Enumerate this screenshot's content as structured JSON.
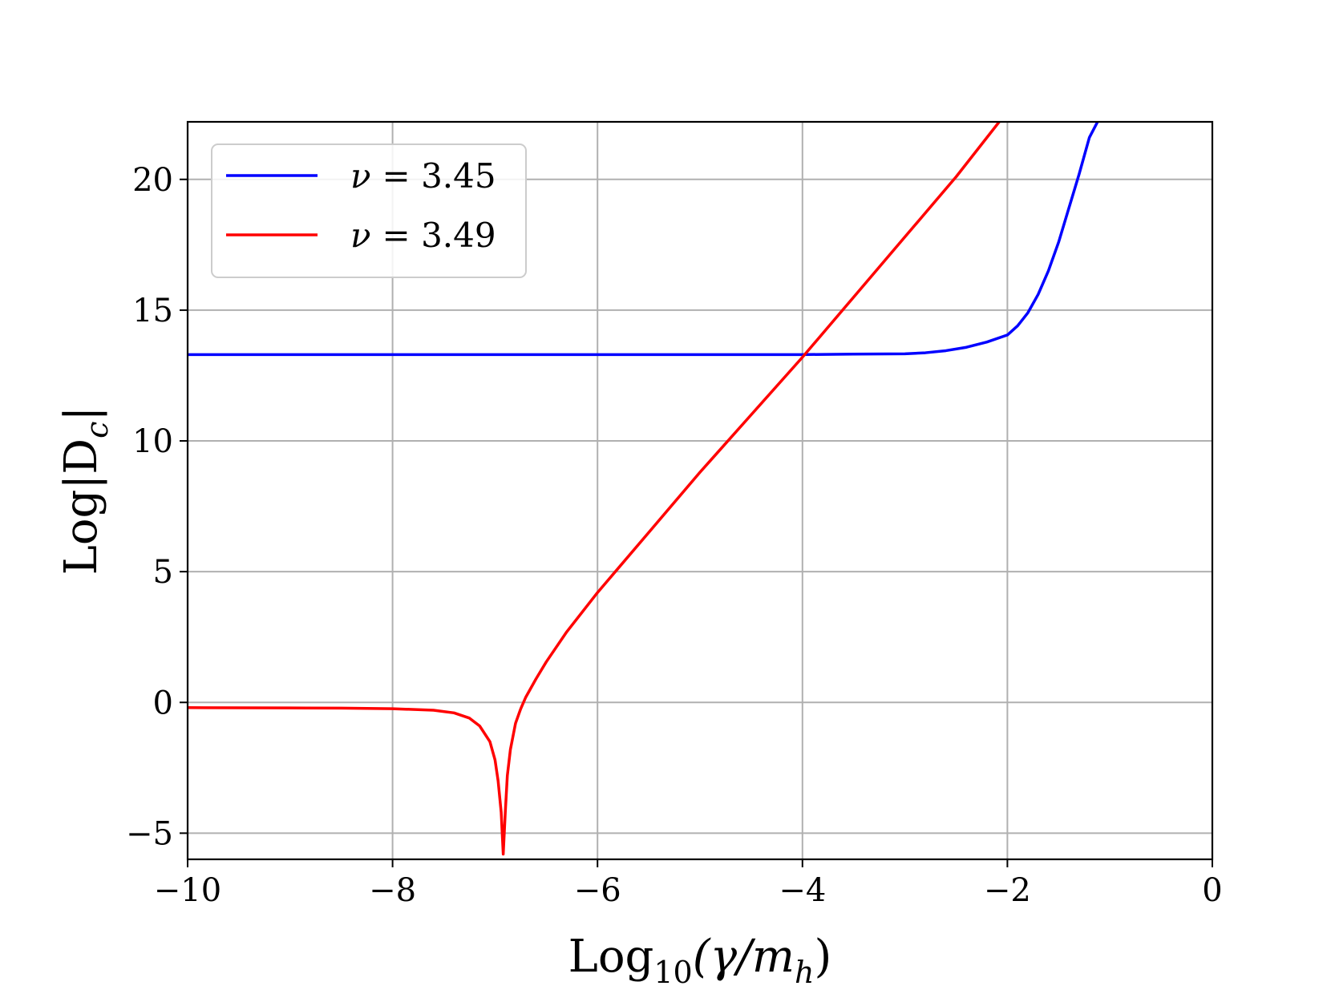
{
  "chart_data": {
    "type": "line",
    "xlabel": {
      "pre": "Log",
      "sub": "10",
      "post": "(γ/m",
      "var_sub": "h",
      "close": ")"
    },
    "ylabel": {
      "pre": "Log|D",
      "sub": "c",
      "close": "|"
    },
    "xlim": [
      -10,
      0
    ],
    "ylim": [
      -6,
      22.2
    ],
    "xticks": [
      -10,
      -8,
      -6,
      -4,
      -2,
      0
    ],
    "xtick_labels": [
      "−10",
      "−8",
      "−6",
      "−4",
      "−2",
      "0"
    ],
    "yticks": [
      -5,
      0,
      5,
      10,
      15,
      20
    ],
    "ytick_labels": [
      "−5",
      "0",
      "5",
      "10",
      "15",
      "20"
    ],
    "grid": true,
    "legend_position": "top-left",
    "series": [
      {
        "name": "ν = 3.45",
        "name_var": "ν",
        "name_value": "= 3.45",
        "color": "#0000ff",
        "x": [
          -10,
          -8,
          -6,
          -4,
          -3.5,
          -3.0,
          -2.8,
          -2.6,
          -2.4,
          -2.2,
          -2.0,
          -1.9,
          -1.8,
          -1.7,
          -1.6,
          -1.5,
          -1.4,
          -1.3,
          -1.2,
          -1.12
        ],
        "y": [
          13.3,
          13.3,
          13.3,
          13.3,
          13.32,
          13.33,
          13.37,
          13.45,
          13.58,
          13.78,
          14.05,
          14.4,
          14.9,
          15.6,
          16.5,
          17.6,
          18.9,
          20.2,
          21.6,
          22.2
        ]
      },
      {
        "name": "ν = 3.49",
        "name_var": "ν",
        "name_value": "= 3.49",
        "color": "#ff0000",
        "x": [
          -10,
          -9,
          -8.5,
          -8.0,
          -7.6,
          -7.4,
          -7.25,
          -7.15,
          -7.05,
          -7.0,
          -6.97,
          -6.94,
          -6.92,
          -6.9,
          -6.88,
          -6.85,
          -6.8,
          -6.75,
          -6.7,
          -6.6,
          -6.5,
          -6.3,
          -6.0,
          -5.5,
          -5.0,
          -4.5,
          -4.0,
          -3.5,
          -3.0,
          -2.5,
          -2.08
        ],
        "y": [
          -0.2,
          -0.21,
          -0.22,
          -0.24,
          -0.3,
          -0.4,
          -0.6,
          -0.9,
          -1.5,
          -2.2,
          -3.0,
          -4.2,
          -5.8,
          -4.2,
          -2.8,
          -1.8,
          -0.8,
          -0.25,
          0.2,
          0.9,
          1.55,
          2.7,
          4.2,
          6.5,
          8.8,
          11.0,
          13.2,
          15.5,
          17.8,
          20.1,
          22.2
        ]
      }
    ]
  }
}
